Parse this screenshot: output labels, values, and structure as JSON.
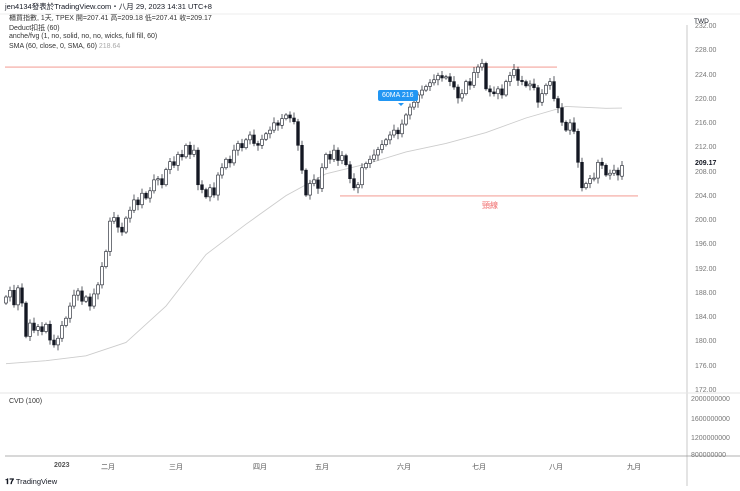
{
  "header": {
    "title": "jen4134發表於TradingView.com・八月 29, 2023 14:31 UTC+8"
  },
  "legend": {
    "symbol_line": "櫃買指數, 1天, TPEX  開=207.41  高=209.18  低=207.41  收=209.17",
    "indicators": [
      {
        "label": "Deduct扣抵 (60)",
        "value": ""
      },
      {
        "label": "anche/fvg (1, no, solid, no, no, wicks, full fill, 60)",
        "value": ""
      },
      {
        "label": "SMA (60, close, 0, SMA, 60)",
        "value": "218.64"
      }
    ]
  },
  "currency": "TWD",
  "last_price_label": "209.17",
  "price_ticks": [
    "232.00",
    "228.00",
    "224.00",
    "220.00",
    "216.00",
    "212.00",
    "208.00",
    "204.00",
    "200.00",
    "196.00",
    "192.00",
    "188.00",
    "184.00",
    "180.00",
    "176.00",
    "172.00"
  ],
  "cvd": {
    "label": "CVD (100)",
    "ticks": [
      "2000000000",
      "1600000000",
      "1200000000",
      "800000000"
    ]
  },
  "time_ticks": [
    "2023",
    "二月",
    "三月",
    "四月",
    "五月",
    "六月",
    "七月",
    "八月",
    "九月"
  ],
  "annotations": {
    "ma_label": "60MA 216",
    "neckline_label": "頸線",
    "neckline_price": 204.15,
    "resistance_price": 225.4
  },
  "colors": {
    "up": "#ffffff",
    "down": "#131722",
    "sma": "#cccccc",
    "line": "#f28b82",
    "neckline_text": "#f06a6a",
    "ma_label_bg": "#2196f3"
  },
  "footer": {
    "brand": "TradingView"
  },
  "chart_data": {
    "type": "candlestick",
    "ylim": [
      172,
      232
    ],
    "close": [
      187.5,
      188.6,
      186.2,
      189.0,
      186.5,
      181.0,
      183.2,
      182.0,
      182.6,
      181.8,
      183.0,
      180.4,
      179.6,
      180.7,
      182.8,
      184.0,
      186.0,
      187.8,
      188.5,
      186.8,
      187.5,
      186.0,
      188.0,
      189.5,
      192.5,
      195.0,
      200.0,
      200.6,
      199.0,
      198.2,
      200.5,
      201.8,
      203.5,
      202.7,
      204.6,
      203.8,
      205.0,
      206.8,
      207.0,
      206.0,
      208.5,
      209.8,
      209.2,
      211.0,
      210.6,
      212.5,
      211.0,
      211.7,
      206.0,
      205.2,
      204.0,
      205.5,
      204.3,
      207.6,
      208.8,
      210.2,
      209.6,
      211.7,
      212.8,
      212.1,
      213.4,
      214.2,
      212.8,
      212.5,
      213.5,
      214.4,
      215.0,
      216.2,
      215.8,
      216.9,
      217.5,
      217.0,
      216.4,
      212.5,
      208.4,
      204.3,
      206.2,
      206.8,
      205.4,
      208.8,
      211.0,
      210.2,
      211.7,
      210.0,
      210.8,
      209.3,
      207.0,
      205.5,
      206.0,
      208.8,
      209.5,
      210.2,
      210.9,
      211.8,
      212.6,
      213.4,
      214.2,
      215.0,
      214.4,
      216.0,
      217.5,
      218.8,
      219.6,
      220.8,
      221.6,
      222.2,
      222.8,
      223.3,
      224.0,
      223.6,
      223.8,
      223.0,
      222.1,
      220.3,
      221.0,
      223.0,
      222.4,
      224.5,
      225.4,
      226.0,
      221.8,
      221.3,
      221.0,
      221.8,
      220.8,
      223.0,
      224.0,
      225.0,
      223.2,
      223.0,
      222.3,
      222.6,
      222.0,
      219.6,
      221.0,
      222.4,
      223.0,
      220.2,
      218.7,
      216.3,
      215.0,
      216.2,
      214.8,
      209.7,
      205.5,
      206.2,
      207.0,
      207.1,
      209.7,
      209.2,
      207.6,
      207.9,
      208.4,
      207.6,
      209.17
    ],
    "last_bar": {
      "open": 207.41,
      "high": 209.18,
      "low": 207.41,
      "close": 209.17
    },
    "sma60": [
      176.5,
      177.0,
      177.8,
      180.0,
      186.0,
      194.5,
      199.5,
      204.2,
      207.8,
      209.4,
      211.4,
      212.8,
      214.6,
      217.0,
      218.9,
      218.6,
      218.64
    ]
  }
}
